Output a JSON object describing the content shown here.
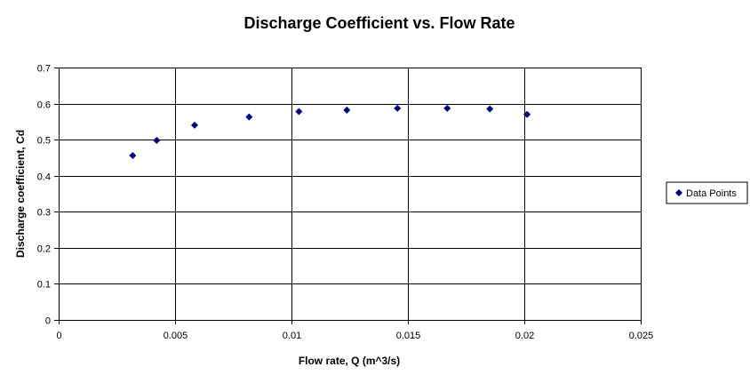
{
  "chart_data": {
    "type": "scatter",
    "title": "Discharge Coefficient vs. Flow Rate",
    "xlabel": "Flow rate, Q (m^3/s)",
    "ylabel": "Discharge coefficient, Cd",
    "xlim": [
      0,
      0.025
    ],
    "ylim": [
      0,
      0.7
    ],
    "xticks": [
      "0",
      "0.005",
      "0.01",
      "0.015",
      "0.02",
      "0.025"
    ],
    "yticks": [
      "0",
      "0.1",
      "0.2",
      "0.3",
      "0.4",
      "0.5",
      "0.6",
      "0.7"
    ],
    "grid": true,
    "legend_position": "right",
    "series": [
      {
        "name": "Data Points",
        "color": "#000080",
        "marker": "diamond",
        "x": [
          0.00318,
          0.00421,
          0.00584,
          0.00818,
          0.01032,
          0.01238,
          0.01455,
          0.01669,
          0.01852,
          0.02012
        ],
        "y": [
          0.456,
          0.498,
          0.54,
          0.563,
          0.578,
          0.582,
          0.587,
          0.587,
          0.585,
          0.57
        ]
      }
    ]
  }
}
